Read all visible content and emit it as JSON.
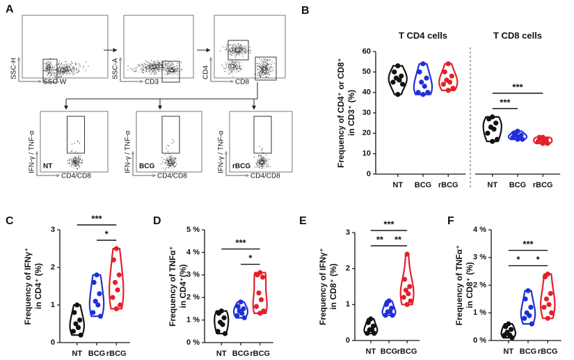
{
  "panel_a": {
    "label": "A",
    "top": [
      {
        "y_label": "SSC-H",
        "x_label": "SSC-W"
      },
      {
        "y_label": "SSC-A",
        "x_label": "CD3"
      },
      {
        "y_label": "CD4",
        "x_label": "CD8"
      }
    ],
    "bottom": [
      {
        "sample": "NT",
        "color": "#111111",
        "y_label": "IFN-γ / TNF-α",
        "x_label": "CD4/CD8"
      },
      {
        "sample": "BCG",
        "color": "#1f2fd8",
        "y_label": "IFN-γ / TNF-α",
        "x_label": "CD4/CD8"
      },
      {
        "sample": "rBCG",
        "color": "#e3202a",
        "y_label": "IFN-γ / TNF-α",
        "x_label": "CD4/CD8"
      }
    ]
  },
  "chart_data": [
    {
      "panel": "B",
      "type": "violin",
      "group_titles": [
        "T CD4 cells",
        "T  CD8 cells"
      ],
      "ylabel": [
        "Frequency of  CD4⁺ or CD8⁺",
        "in CD3⁺ (%)"
      ],
      "categories": [
        "NT",
        "BCG",
        "rBCG",
        "NT",
        "BCG",
        "rBCG"
      ],
      "colors": [
        "#111111",
        "#1f2fd8",
        "#e3202a",
        "#111111",
        "#1f2fd8",
        "#e3202a"
      ],
      "values": [
        [
          53,
          50,
          48,
          47,
          46,
          45,
          44,
          39
        ],
        [
          54,
          50,
          47,
          45,
          43,
          40,
          40,
          39
        ],
        [
          54,
          50,
          48,
          46,
          45,
          44,
          42,
          41
        ],
        [
          28,
          27,
          25,
          23,
          22,
          20,
          17,
          16
        ],
        [
          21,
          20,
          19,
          19,
          18,
          18,
          17,
          17
        ],
        [
          18,
          18,
          17,
          17,
          16,
          16,
          15,
          15
        ]
      ],
      "ylim": [
        0,
        60
      ],
      "yticks": [
        0,
        10,
        20,
        30,
        40,
        50,
        60
      ],
      "comparisons": [
        {
          "from": 3,
          "to": 4,
          "label": "***"
        },
        {
          "from": 3,
          "to": 5,
          "label": "***"
        }
      ]
    },
    {
      "panel": "C",
      "type": "violin",
      "ylabel": [
        "Frequency of IFNγ⁺",
        "in  CD4⁺ (%)"
      ],
      "categories": [
        "NT",
        "BCG",
        "rBCG"
      ],
      "colors": [
        "#111111",
        "#1f2fd8",
        "#e3202a"
      ],
      "values": [
        [
          1.0,
          0.8,
          0.6,
          0.5,
          0.4,
          0.3,
          0.2
        ],
        [
          1.8,
          1.6,
          1.3,
          1.1,
          1.0,
          0.8,
          0.7
        ],
        [
          2.5,
          2.2,
          1.8,
          1.6,
          1.4,
          1.2,
          1.0,
          0.9
        ]
      ],
      "ylim": [
        0,
        3
      ],
      "yticks": [
        0,
        1,
        2,
        3
      ],
      "comparisons": [
        {
          "from": 1,
          "to": 2,
          "label": "*"
        },
        {
          "from": 0,
          "to": 2,
          "label": "***"
        }
      ]
    },
    {
      "panel": "D",
      "type": "violin",
      "ylabel": [
        "Frequency of TNFα⁺",
        "in CD4⁺(%)"
      ],
      "categories": [
        "NT",
        "BCG",
        "rBCG"
      ],
      "colors": [
        "#111111",
        "#1f2fd8",
        "#e3202a"
      ],
      "values": [
        [
          1.4,
          1.3,
          1.1,
          0.9,
          0.8,
          0.5,
          0.4
        ],
        [
          1.8,
          1.6,
          1.5,
          1.4,
          1.3,
          1.2,
          1.1
        ],
        [
          3.1,
          3.0,
          2.9,
          2.2,
          1.9,
          1.6,
          1.4,
          1.3
        ]
      ],
      "ylim": [
        0,
        5
      ],
      "yticks": [
        {
          "value": 0,
          "label": "0 %"
        },
        {
          "value": 1,
          "label": "1 %"
        },
        {
          "value": 2,
          "label": "2 %"
        },
        {
          "value": 3,
          "label": "3 %"
        },
        {
          "value": 4,
          "label": "4 %"
        },
        {
          "value": 5,
          "label": "5 %"
        }
      ],
      "comparisons": [
        {
          "from": 1,
          "to": 2,
          "label": "*"
        },
        {
          "from": 0,
          "to": 2,
          "label": "***"
        }
      ]
    },
    {
      "panel": "E",
      "type": "violin",
      "ylabel": [
        "Frequency of IFNγ⁺",
        "in CD8⁺ (%)"
      ],
      "categories": [
        "NT",
        "BCG",
        "rBCG"
      ],
      "colors": [
        "#111111",
        "#1f2fd8",
        "#e3202a"
      ],
      "values": [
        [
          0.6,
          0.5,
          0.4,
          0.3,
          0.3,
          0.2,
          0.2
        ],
        [
          1.1,
          1.0,
          0.9,
          0.8,
          0.8,
          0.7,
          0.7
        ],
        [
          2.4,
          1.7,
          1.5,
          1.4,
          1.3,
          1.2,
          1.1,
          1.0
        ]
      ],
      "ylim": [
        0,
        3
      ],
      "yticks": [
        0,
        1,
        2,
        3
      ],
      "comparisons": [
        {
          "from": 0,
          "to": 1,
          "label": "**"
        },
        {
          "from": 1,
          "to": 2,
          "label": "**"
        },
        {
          "from": 0,
          "to": 2,
          "label": "***"
        }
      ]
    },
    {
      "panel": "F",
      "type": "violin",
      "ylabel": [
        "Frequency of TNFα⁺",
        "in CD8⁺ (%)"
      ],
      "categories": [
        "NT",
        "BCG",
        "rBCG"
      ],
      "colors": [
        "#111111",
        "#1f2fd8",
        "#e3202a"
      ],
      "values": [
        [
          0.6,
          0.5,
          0.4,
          0.3,
          0.2,
          0.2,
          0.1
        ],
        [
          1.8,
          1.5,
          1.2,
          1.0,
          0.9,
          0.8,
          0.6
        ],
        [
          2.4,
          2.3,
          1.7,
          1.5,
          1.3,
          1.2,
          1.0,
          0.8
        ]
      ],
      "ylim": [
        0,
        4
      ],
      "yticks": [
        {
          "value": 0,
          "label": "0 %"
        },
        {
          "value": 1,
          "label": "1 %"
        },
        {
          "value": 2,
          "label": "2 %"
        },
        {
          "value": 3,
          "label": "3 %"
        },
        {
          "value": 4,
          "label": "4 %"
        }
      ],
      "comparisons": [
        {
          "from": 0,
          "to": 1,
          "label": "*"
        },
        {
          "from": 1,
          "to": 2,
          "label": "*"
        },
        {
          "from": 0,
          "to": 2,
          "label": "***"
        }
      ]
    }
  ]
}
